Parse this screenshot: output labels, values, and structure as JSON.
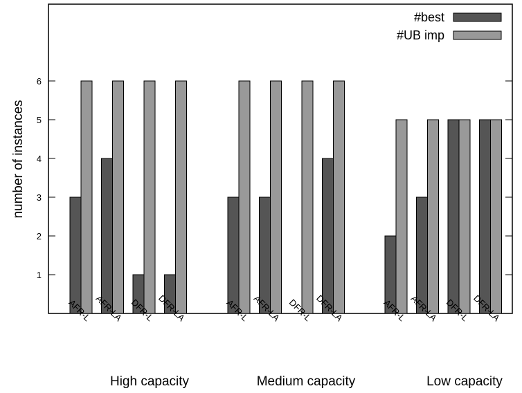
{
  "chart_data": {
    "type": "bar",
    "title": "",
    "xlabel": "",
    "ylabel": "number of instances",
    "ylim": [
      0,
      8
    ],
    "yticks": [
      1,
      2,
      3,
      4,
      5,
      6
    ],
    "grid": false,
    "legend_position": "top-right",
    "groups": [
      {
        "label": "High capacity",
        "categories": [
          "AFR-L",
          "AFR-LA",
          "DFR-L",
          "DFR-LA"
        ]
      },
      {
        "label": "Medium capacity",
        "categories": [
          "AFR-L",
          "AFR-LA",
          "DFR-L",
          "DFR-LA"
        ]
      },
      {
        "label": "Low capacity",
        "categories": [
          "AFR-L",
          "AFR-LA",
          "DFR-L",
          "DFR-LA"
        ]
      }
    ],
    "series": [
      {
        "name": "#best",
        "color": "#555555",
        "values": [
          3,
          4,
          1,
          1,
          3,
          3,
          0,
          4,
          2,
          3,
          5,
          5
        ]
      },
      {
        "name": "#UB imp",
        "color": "#999999",
        "values": [
          6,
          6,
          6,
          6,
          6,
          6,
          6,
          6,
          5,
          5,
          5,
          5
        ]
      }
    ]
  }
}
